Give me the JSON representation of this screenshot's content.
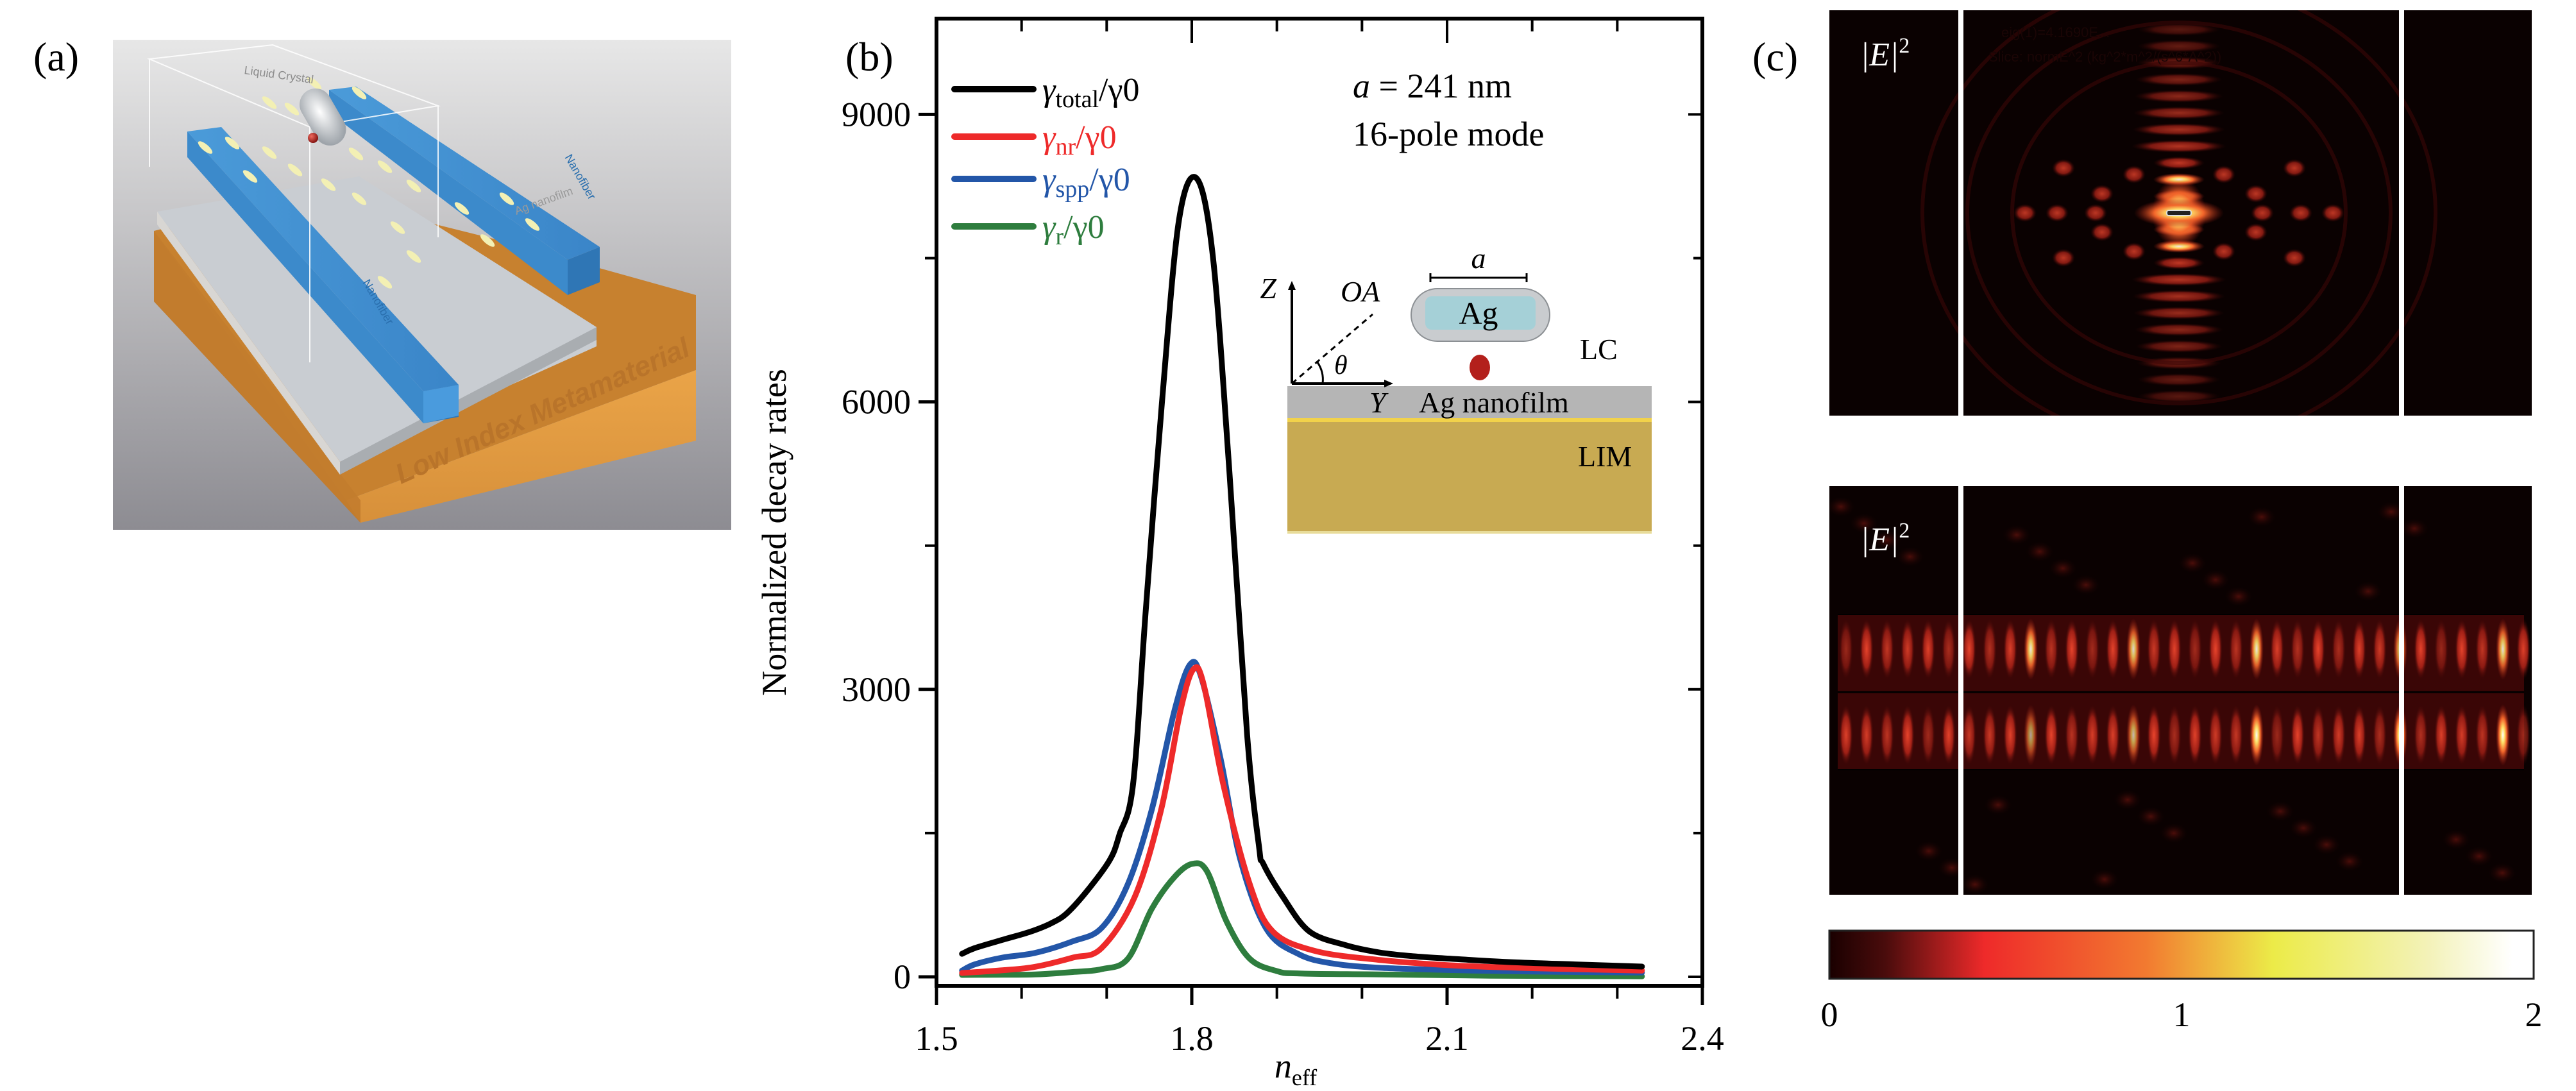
{
  "figure": {
    "panel_labels": [
      "(a)",
      "(b)",
      "(c)"
    ]
  },
  "panel_a": {
    "description": "3D schematic of liquid-crystal nanofiber waveguide structure",
    "labels": {
      "liquid_crystal": "Liquid Crystal",
      "nanofiber_left": "Nanofiber",
      "nanofiber_right": "Nanofiber",
      "ag_nanofilm": "Ag nanofilm",
      "substrate": "Low Index Metamaterial"
    },
    "colors": {
      "substrate": "#E39A3B",
      "nanofiber": "#3F8FD2",
      "film": "#B9BEC4",
      "background_top": "#E4E4E4",
      "background_bottom": "#8E8D93",
      "lc_molecule": "#F3F0B4",
      "emitter": "#B3201C"
    }
  },
  "panel_b": {
    "annotation_line1": "a = 241 nm",
    "annotation_var": "a",
    "annotation_rest": " = 241 nm",
    "annotation_line2": "16-pole mode",
    "inset": {
      "labels": {
        "z_axis": "Z",
        "y_axis": "Y",
        "optic_axis": "OA",
        "angle": "θ",
        "length": "a",
        "rod": "Ag",
        "lc": "LC",
        "film": "Ag nanofilm",
        "substrate": "LIM"
      },
      "colors": {
        "film": "#B5B5B5",
        "substrate": "#C8AA52",
        "substrate_edge": "#F2D24A",
        "rod": "#9FD0D8",
        "emitter": "#B3201C"
      }
    }
  },
  "panel_c": {
    "top_map": {
      "label": "|E|",
      "exponent": "2",
      "overlay_text_1": "eig(1)=4.1690E...",
      "overlay_text_2": "Slice: normE^2 (kg^2*m^2/(s^6*A^2))"
    },
    "bottom_map": {
      "label": "|E|",
      "exponent": "2"
    },
    "colorbar": {
      "ticks": [
        "0",
        "1",
        "2"
      ],
      "range": [
        0,
        2
      ],
      "stops": [
        "#1A0000",
        "#5A1010",
        "#EE2A2A",
        "#F28A30",
        "#ECEB48",
        "#FFFFFF"
      ]
    }
  },
  "chart_data": {
    "type": "line",
    "title": "",
    "xlabel": "n_eff",
    "xlabel_main": "n",
    "xlabel_sub": "eff",
    "ylabel": "Normalized decay rates",
    "xlim": [
      1.5,
      2.4
    ],
    "ylim": [
      -200,
      10050
    ],
    "xticks": [
      1.5,
      1.8,
      2.1,
      2.4
    ],
    "xtick_labels": [
      "1.5",
      "1.8",
      "2.1",
      "2.4"
    ],
    "xminor": [
      1.6,
      1.7,
      1.9,
      2.0,
      2.2,
      2.3
    ],
    "yticks": [
      0,
      3000,
      6000,
      9000
    ],
    "ytick_labels": [
      "0",
      "3000",
      "6000",
      "9000"
    ],
    "yminor": [
      1500,
      4500,
      7500
    ],
    "grid": false,
    "legend_position": "top-left",
    "series": [
      {
        "name": "γtotal/γ0",
        "legend_main": "γ",
        "legend_sub": "total",
        "legend_tail": "/γ0",
        "color": "#000000",
        "x": [
          1.53,
          1.545,
          1.581,
          1.61,
          1.635,
          1.654,
          1.68,
          1.704,
          1.715,
          1.731,
          1.746,
          1.765,
          1.785,
          1.806,
          1.825,
          1.844,
          1.865,
          1.879,
          1.884,
          1.907,
          1.938,
          1.981,
          2.02,
          2.06,
          2.103,
          2.171,
          2.25,
          2.329
        ],
        "y": [
          240,
          300,
          395,
          470,
          560,
          670,
          930,
          1225,
          1485,
          2010,
          3835,
          6000,
          7900,
          8330,
          7500,
          5300,
          2530,
          1360,
          1180,
          835,
          475,
          330,
          255,
          215,
          190,
          155,
          130,
          107
        ]
      },
      {
        "name": "γnr/γ0",
        "legend_main": "γ",
        "legend_sub": "nr",
        "legend_tail": "/γ0",
        "color": "#EE2A2A",
        "x": [
          1.53,
          1.58,
          1.616,
          1.66,
          1.694,
          1.733,
          1.764,
          1.787,
          1.802,
          1.814,
          1.837,
          1.868,
          1.895,
          1.945,
          2.022,
          2.105,
          2.2,
          2.329
        ],
        "y": [
          40,
          70,
          105,
          200,
          300,
          835,
          1745,
          2790,
          3210,
          3050,
          2010,
          970,
          475,
          270,
          175,
          120,
          90,
          65
        ]
      },
      {
        "name": "γspp/γ0",
        "legend_main": "γ",
        "legend_sub": "spp",
        "legend_tail": "/γ0",
        "color": "#2356A8",
        "x": [
          1.53,
          1.545,
          1.577,
          1.616,
          1.66,
          1.694,
          1.725,
          1.753,
          1.78,
          1.798,
          1.811,
          1.834,
          1.857,
          1.888,
          1.926,
          1.965,
          2.02,
          2.107,
          2.2,
          2.329
        ],
        "y": [
          65,
          130,
          200,
          250,
          370,
          510,
          970,
          1745,
          2790,
          3260,
          3130,
          2270,
          1225,
          495,
          235,
          140,
          95,
          70,
          55,
          45
        ]
      },
      {
        "name": "γr/γ0",
        "legend_main": "γ",
        "legend_sub": "r",
        "legend_tail": "/γ0",
        "color": "#2E7D3E",
        "x": [
          1.53,
          1.58,
          1.616,
          1.66,
          1.694,
          1.725,
          1.753,
          1.78,
          1.801,
          1.818,
          1.841,
          1.868,
          1.9,
          1.926,
          2.02,
          2.15,
          2.329
        ],
        "y": [
          20,
          22,
          25,
          50,
          80,
          190,
          710,
          1045,
          1180,
          1100,
          575,
          190,
          60,
          35,
          25,
          12,
          5
        ]
      }
    ]
  }
}
